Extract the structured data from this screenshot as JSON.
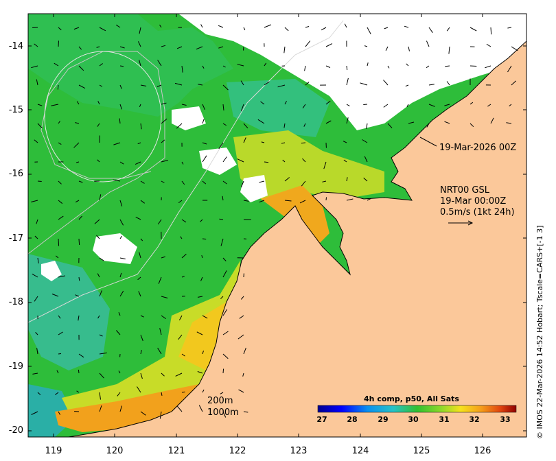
{
  "map": {
    "title_timestamp": "19-Mar-2026 00Z",
    "current_source": "NRT00 GSL",
    "current_time": "19-Mar 00:00Z",
    "arrow_scale": "0.5m/s (1kt 24h)",
    "contour_1": "200m",
    "contour_2": "1000m",
    "credit": "© IMOS 22-Mar-2026 14:52 Hobart; Tscale=CARS+[-1 3]"
  },
  "axes": {
    "lat_labels": [
      "-14",
      "-15",
      "-16",
      "-17",
      "-18",
      "-19",
      "-20"
    ],
    "lon_labels": [
      "119",
      "120",
      "121",
      "122",
      "123",
      "124",
      "125",
      "126"
    ]
  },
  "colorbar": {
    "title": "4h comp, p50, All Sats",
    "ticks": [
      "27",
      "28",
      "29",
      "30",
      "31",
      "32",
      "33"
    ],
    "range": [
      26.7,
      33.3
    ]
  },
  "colors": {
    "land": "#fbc89a",
    "cloud": "#ffffff",
    "sst_29": "#29b9c9",
    "sst_30": "#2ebd3a",
    "sst_31": "#b5d92a",
    "sst_32": "#f2a11c"
  }
}
